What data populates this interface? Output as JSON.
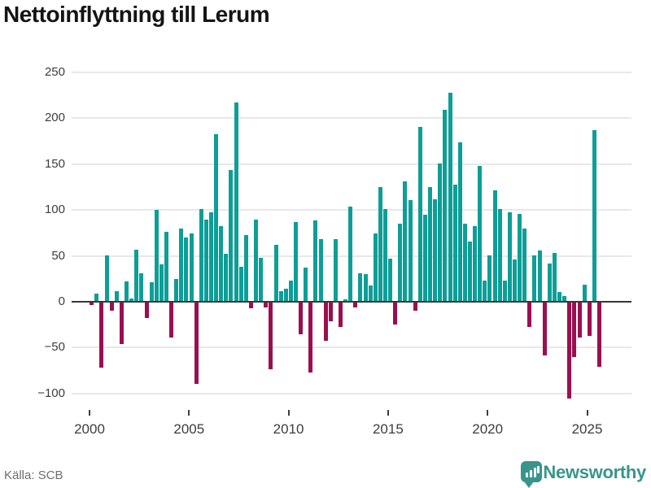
{
  "title": "Nettoinflyttning till Lerum",
  "source_label": "Källa: SCB",
  "brand": {
    "name": "Newsworthy",
    "logo_icon": "bar-chart-pin-icon",
    "color": "#37958e"
  },
  "colors": {
    "positive_bar": "#0d9e97",
    "negative_bar": "#9c0e50",
    "gridline": "#e8e8e8",
    "zero_line": "#37373a",
    "title_text": "#141414",
    "axis_text": "#3d3d3d",
    "source_text": "#6e6e6e"
  },
  "chart_data": {
    "type": "bar",
    "title": "Nettoinflyttning till Lerum",
    "xlabel": "",
    "ylabel": "",
    "unit": "persons per quarter (net migration)",
    "ylim": [
      -100,
      250
    ],
    "ytick_interval": 50,
    "ytick_labels": [
      "250",
      "200",
      "150",
      "100",
      "50",
      "0",
      "−50",
      "−100"
    ],
    "ytick_values": [
      250,
      200,
      150,
      100,
      50,
      0,
      -50,
      -100
    ],
    "xtick_labels": [
      "2000",
      "2005",
      "2010",
      "2015",
      "2020",
      "2025"
    ],
    "xtick_years": [
      2000,
      2005,
      2010,
      2015,
      2020,
      2025
    ],
    "grid": "horizontal",
    "legend": "none",
    "start_period": "2000 Q1",
    "end_period": "2025 Q3",
    "series_by_year": {
      "2000": [
        -3,
        8,
        -71,
        50
      ],
      "2001": [
        -9,
        11,
        -45,
        21
      ],
      "2002": [
        3,
        56,
        30,
        -17
      ],
      "2003": [
        20,
        99,
        40,
        75
      ],
      "2004": [
        -38,
        24,
        79,
        69
      ],
      "2005": [
        74,
        -89,
        100,
        89
      ],
      "2006": [
        97,
        182,
        82,
        51
      ],
      "2007": [
        143,
        216,
        37,
        72
      ],
      "2008": [
        -6,
        89,
        47,
        -5
      ],
      "2009": [
        -73,
        61,
        11,
        13
      ],
      "2010": [
        22,
        86,
        -35,
        36
      ],
      "2011": [
        -76,
        88,
        67,
        -42
      ],
      "2012": [
        -20,
        67,
        -27,
        2
      ],
      "2013": [
        103,
        -5,
        30,
        29
      ],
      "2014": [
        17,
        74,
        124,
        100
      ],
      "2015": [
        46,
        -24,
        84,
        130
      ],
      "2016": [
        110,
        -9,
        190,
        94
      ],
      "2017": [
        124,
        111,
        150,
        208
      ],
      "2018": [
        227,
        127,
        173,
        84
      ],
      "2019": [
        65,
        82,
        147,
        22
      ],
      "2020": [
        50,
        121,
        100,
        22
      ],
      "2021": [
        97,
        45,
        95,
        79
      ],
      "2022": [
        -27,
        50,
        55,
        -58
      ],
      "2023": [
        41,
        52,
        10,
        5
      ],
      "2024": [
        -105,
        -59,
        -38,
        18
      ],
      "2025": [
        -36,
        186,
        -70
      ]
    }
  }
}
